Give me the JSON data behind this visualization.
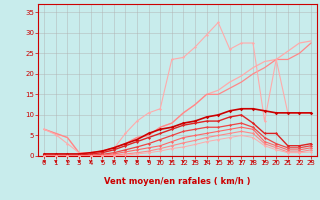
{
  "background_color": "#c8ecec",
  "grid_color": "#b0b0b0",
  "xlabel": "Vent moyen/en rafales ( km/h )",
  "x": [
    0,
    1,
    2,
    3,
    4,
    5,
    6,
    7,
    8,
    9,
    10,
    11,
    12,
    13,
    14,
    15,
    16,
    17,
    18,
    19,
    20,
    21,
    22,
    23
  ],
  "lines": [
    {
      "y": [
        6.5,
        5.5,
        4.5,
        0.8,
        0.8,
        1.2,
        2.0,
        3.0,
        4.5,
        5.0,
        7.0,
        8.0,
        10.5,
        12.5,
        15.0,
        16.0,
        18.0,
        19.5,
        21.5,
        23.0,
        23.5,
        25.5,
        27.5,
        28.0
      ],
      "color": "#ffaaaa",
      "lw": 0.9,
      "marker": null
    },
    {
      "y": [
        6.5,
        5.5,
        4.5,
        0.8,
        0.8,
        1.2,
        2.0,
        3.0,
        4.5,
        5.0,
        7.0,
        8.0,
        10.5,
        12.5,
        15.0,
        15.0,
        16.5,
        18.0,
        20.0,
        21.5,
        23.5,
        23.5,
        25.0,
        27.5
      ],
      "color": "#ff8888",
      "lw": 0.9,
      "marker": null
    },
    {
      "y": [
        6.5,
        5.2,
        3.0,
        0.8,
        0.8,
        1.0,
        1.8,
        5.5,
        8.5,
        10.5,
        11.5,
        23.5,
        24.0,
        26.5,
        29.5,
        32.5,
        26.0,
        27.5,
        27.5,
        8.5,
        23.5,
        10.5,
        10.5,
        10.5
      ],
      "color": "#ffaaaa",
      "lw": 0.8,
      "marker": "D",
      "markersize": 1.5
    },
    {
      "y": [
        0.5,
        0.5,
        0.5,
        0.5,
        0.8,
        1.2,
        2.0,
        3.0,
        4.0,
        5.5,
        6.5,
        7.0,
        8.0,
        8.5,
        9.5,
        10.0,
        11.0,
        11.5,
        11.5,
        11.0,
        10.5,
        10.5,
        10.5,
        10.5
      ],
      "color": "#cc0000",
      "lw": 1.2,
      "marker": "D",
      "markersize": 1.8
    },
    {
      "y": [
        0.2,
        0.2,
        0.2,
        0.2,
        0.5,
        0.8,
        1.5,
        2.5,
        3.5,
        4.5,
        5.5,
        6.5,
        7.5,
        8.0,
        8.5,
        8.5,
        9.5,
        10.0,
        8.0,
        5.5,
        5.5,
        2.5,
        2.5,
        3.0
      ],
      "color": "#dd2222",
      "lw": 1.0,
      "marker": "D",
      "markersize": 1.5
    },
    {
      "y": [
        0.0,
        0.0,
        0.0,
        0.0,
        0.2,
        0.4,
        0.8,
        1.5,
        2.2,
        3.0,
        4.0,
        5.0,
        6.0,
        6.5,
        7.0,
        7.0,
        7.5,
        8.0,
        7.0,
        4.5,
        3.0,
        2.0,
        2.0,
        2.5
      ],
      "color": "#ee4444",
      "lw": 0.9,
      "marker": "D",
      "markersize": 1.5
    },
    {
      "y": [
        0.0,
        0.0,
        0.0,
        0.0,
        0.1,
        0.2,
        0.5,
        1.0,
        1.5,
        2.0,
        2.5,
        3.5,
        4.5,
        5.0,
        5.5,
        6.0,
        6.5,
        7.0,
        6.5,
        3.5,
        2.5,
        1.5,
        1.5,
        2.0
      ],
      "color": "#ff6666",
      "lw": 0.8,
      "marker": "D",
      "markersize": 1.5
    },
    {
      "y": [
        0.0,
        0.0,
        0.0,
        0.0,
        0.0,
        0.1,
        0.2,
        0.5,
        0.8,
        1.2,
        1.8,
        2.5,
        3.2,
        3.8,
        4.5,
        5.0,
        5.5,
        6.0,
        5.5,
        3.0,
        2.0,
        1.0,
        1.0,
        1.5
      ],
      "color": "#ff8888",
      "lw": 0.8,
      "marker": "D",
      "markersize": 1.5
    },
    {
      "y": [
        0.0,
        0.0,
        0.0,
        0.0,
        0.0,
        0.0,
        0.1,
        0.2,
        0.5,
        0.8,
        1.2,
        1.8,
        2.2,
        2.8,
        3.5,
        4.0,
        4.5,
        5.0,
        4.5,
        2.5,
        1.5,
        0.8,
        0.8,
        1.0
      ],
      "color": "#ffaaaa",
      "lw": 0.7,
      "marker": "D",
      "markersize": 1.5
    }
  ],
  "arrow_color": "#cc0000",
  "xlim": [
    -0.5,
    23.5
  ],
  "ylim": [
    0,
    37
  ],
  "yticks": [
    0,
    5,
    10,
    15,
    20,
    25,
    30,
    35
  ],
  "xticks": [
    0,
    1,
    2,
    3,
    4,
    5,
    6,
    7,
    8,
    9,
    10,
    11,
    12,
    13,
    14,
    15,
    16,
    17,
    18,
    19,
    20,
    21,
    22,
    23
  ],
  "tick_fontsize": 5.0,
  "xlabel_fontsize": 6.0
}
